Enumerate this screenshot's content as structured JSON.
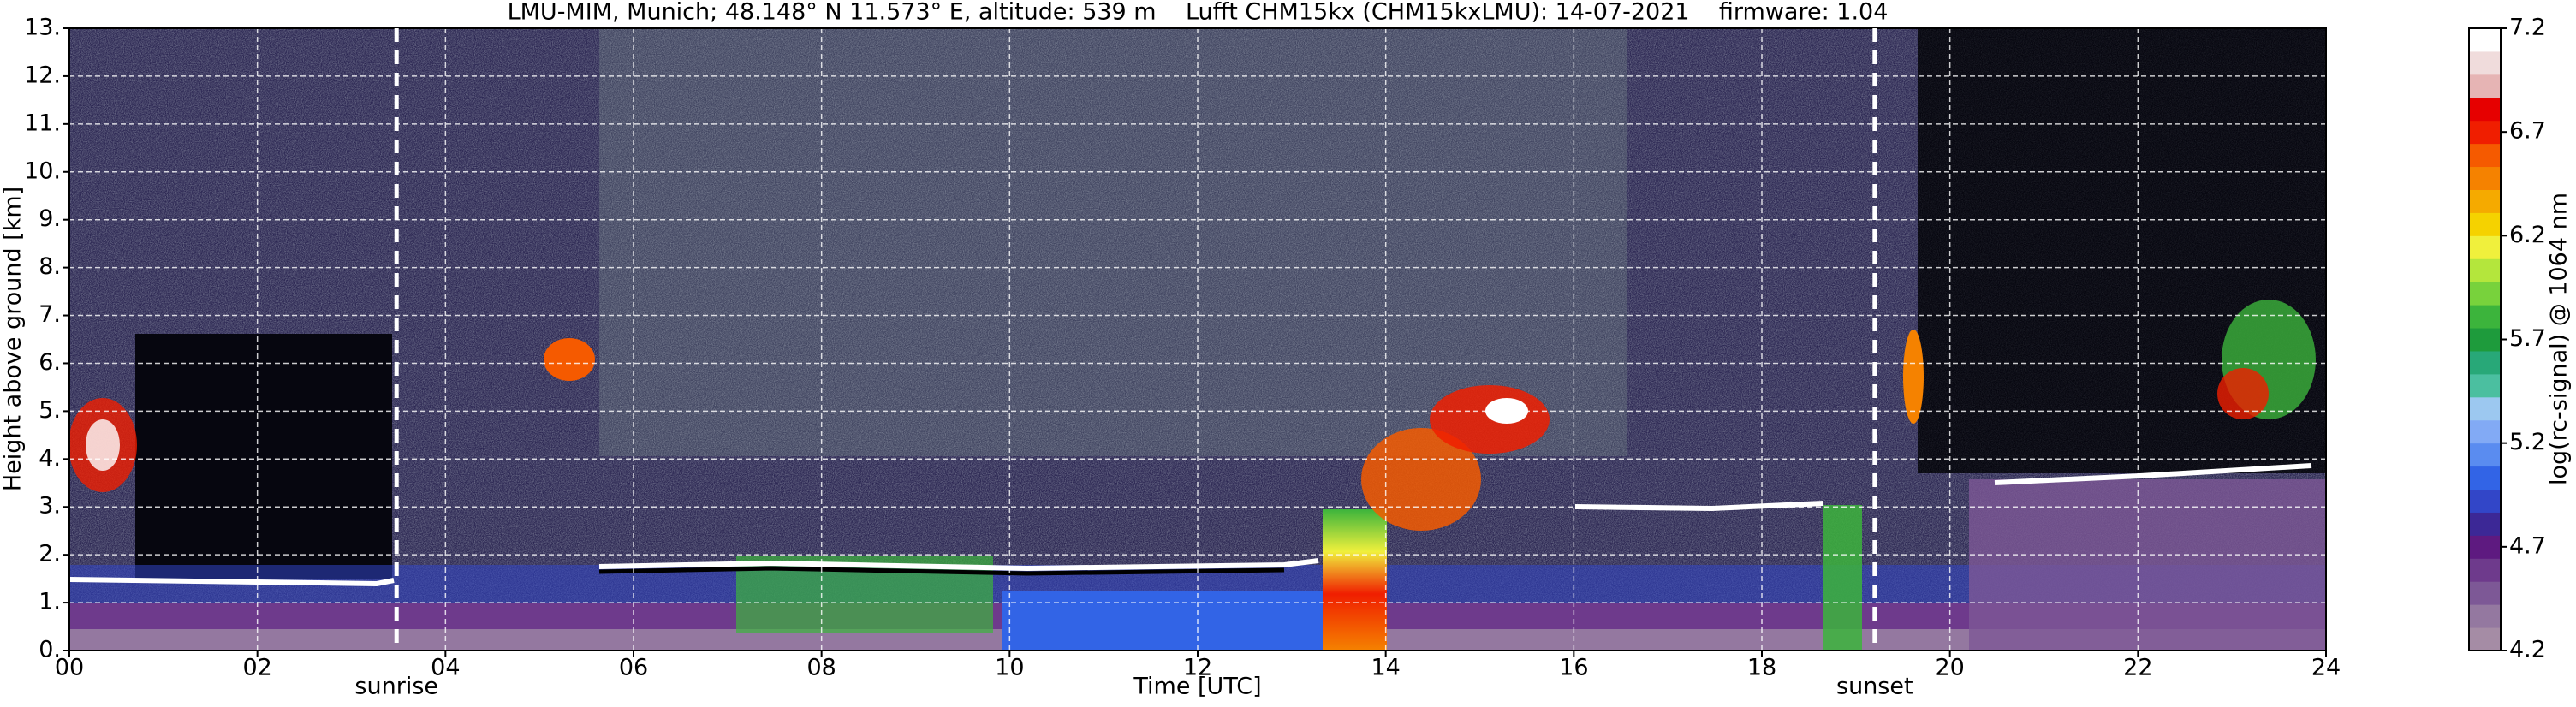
{
  "chart_data": {
    "type": "heatmap",
    "title": "LMU-MIM, Munich; 48.148° N 11.573° E, altitude: 539 m    Lufft CHM15kx (CHM15kxLMU): 14-07-2021    firmware: 1.04",
    "xlabel": "Time [UTC]",
    "ylabel": "Height above ground [km]",
    "xlim": [
      0,
      24
    ],
    "xticks": [
      {
        "value": 0,
        "label": "00"
      },
      {
        "value": 2,
        "label": "02"
      },
      {
        "value": 4,
        "label": "04"
      },
      {
        "value": 6,
        "label": "06"
      },
      {
        "value": 8,
        "label": "08"
      },
      10,
      12,
      14,
      16,
      18,
      20,
      22,
      24
    ],
    "ylim": [
      0,
      13
    ],
    "yticks": [
      {
        "value": 0,
        "label": "0."
      },
      {
        "value": 1,
        "label": "1."
      },
      {
        "value": 2,
        "label": "2."
      },
      {
        "value": 3,
        "label": "3."
      },
      {
        "value": 4,
        "label": "4."
      },
      {
        "value": 5,
        "label": "5."
      },
      {
        "value": 6,
        "label": "6."
      },
      {
        "value": 7,
        "label": "7."
      },
      {
        "value": 8,
        "label": "8."
      },
      {
        "value": 9,
        "label": "9."
      },
      {
        "value": 10,
        "label": "10."
      },
      {
        "value": 11,
        "label": "11."
      },
      {
        "value": 12,
        "label": "12."
      },
      {
        "value": 13,
        "label": "13."
      }
    ],
    "grid": true,
    "annotations": [
      {
        "text": "sunrise",
        "x": 3.48
      },
      {
        "text": "sunset",
        "x": 19.2
      }
    ],
    "colorbar": {
      "label": "log(rc-signal) @ 1064 nm",
      "clim": [
        4.2,
        7.2
      ],
      "ticks": [
        4.2,
        4.7,
        5.2,
        5.7,
        6.2,
        6.7,
        7.2
      ],
      "colors": [
        "#a58ca5",
        "#9478a0",
        "#7d5896",
        "#6e3a8c",
        "#5e1a80",
        "#3c2896",
        "#3246c8",
        "#3264e6",
        "#5a8cf0",
        "#82aaf5",
        "#9cc8f0",
        "#4bbfa0",
        "#28a878",
        "#1e9b3c",
        "#3cb43c",
        "#78d23c",
        "#b4e63c",
        "#f0f03c",
        "#f5d200",
        "#f5aa00",
        "#f58200",
        "#f55a00",
        "#f01e00",
        "#e60000",
        "#e6b4b4",
        "#f0dcdc",
        "#ffffff"
      ]
    }
  }
}
